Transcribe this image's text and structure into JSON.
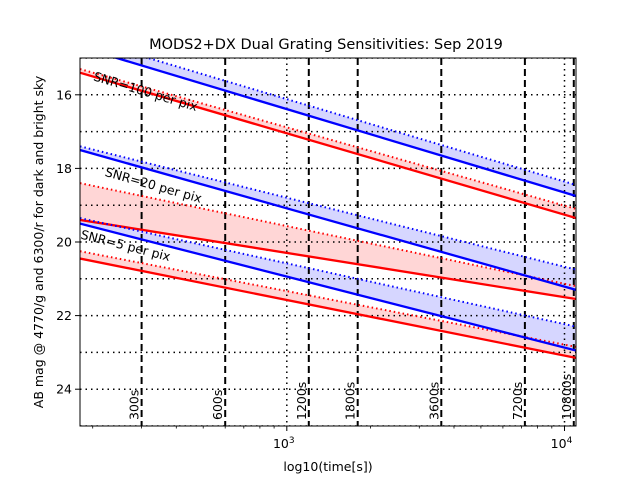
{
  "chart_data": {
    "type": "line",
    "title": "MODS2+DX Dual Grating Sensitivities: Sep 2019",
    "xlabel": "log10(time[s])",
    "ylabel": "AB mag @ 4770/g and 6300/r for dark and bright sky",
    "x_scale": "log",
    "xlim": [
      180,
      11000
    ],
    "ylim": [
      25,
      15
    ],
    "y_inverted": true,
    "grid": true,
    "x_ticks": [
      {
        "value": 1000,
        "mantissa": "10",
        "exponent": "3"
      },
      {
        "value": 10000,
        "mantissa": "10",
        "exponent": "4"
      }
    ],
    "y_ticks": [
      {
        "value": 16,
        "label": "16"
      },
      {
        "value": 18,
        "label": "18"
      },
      {
        "value": 20,
        "label": "20"
      },
      {
        "value": 22,
        "label": "22"
      },
      {
        "value": 24,
        "label": "24"
      }
    ],
    "exposure_markers": [
      {
        "t": 300,
        "label": "300s"
      },
      {
        "t": 600,
        "label": "600s"
      },
      {
        "t": 1200,
        "label": "1200s"
      },
      {
        "t": 1800,
        "label": "1800s"
      },
      {
        "t": 3600,
        "label": "3600s"
      },
      {
        "t": 7200,
        "label": "7200s"
      },
      {
        "t": 10800,
        "label": "10800s"
      }
    ],
    "snr_groups": [
      {
        "label": "SNR=100 per pix",
        "label_at": {
          "t": 200,
          "mag": 15.6
        },
        "blue": {
          "dark": {
            "x": [
              180,
              11000
            ],
            "y": [
              14.7,
              18.75
            ]
          },
          "bright": {
            "x": [
              180,
              11000
            ],
            "y": [
              14.45,
              18.45
            ]
          }
        },
        "red": {
          "dark": {
            "x": [
              180,
              11000
            ],
            "y": [
              15.4,
              19.35
            ]
          },
          "bright": {
            "x": [
              180,
              11000
            ],
            "y": [
              15.3,
              19.1
            ]
          }
        }
      },
      {
        "label": "SNR=20 per pix",
        "label_at": {
          "t": 220,
          "mag": 18.2
        },
        "blue": {
          "dark": {
            "x": [
              180,
              11000
            ],
            "y": [
              17.5,
              21.3
            ]
          },
          "bright": {
            "x": [
              180,
              11000
            ],
            "y": [
              17.4,
              20.75
            ]
          }
        },
        "red": {
          "dark": {
            "x": [
              180,
              11000
            ],
            "y": [
              19.4,
              21.55
            ]
          },
          "bright": {
            "x": [
              180,
              11000
            ],
            "y": [
              18.4,
              21.2
            ]
          }
        }
      },
      {
        "label": "SNR=5 per pix",
        "label_at": {
          "t": 180,
          "mag": 19.9
        },
        "blue": {
          "dark": {
            "x": [
              180,
              11000
            ],
            "y": [
              19.5,
              22.95
            ]
          },
          "bright": {
            "x": [
              180,
              11000
            ],
            "y": [
              19.35,
              22.3
            ]
          }
        },
        "red": {
          "dark": {
            "x": [
              180,
              11000
            ],
            "y": [
              20.45,
              23.15
            ]
          },
          "bright": {
            "x": [
              180,
              11000
            ],
            "y": [
              20.25,
              22.85
            ]
          }
        }
      }
    ],
    "colors": {
      "blue": "#0000ff",
      "red": "#ff0000",
      "blue_fill": "#ccccff",
      "red_fill": "#ffcccc",
      "grid": "#000000"
    }
  }
}
